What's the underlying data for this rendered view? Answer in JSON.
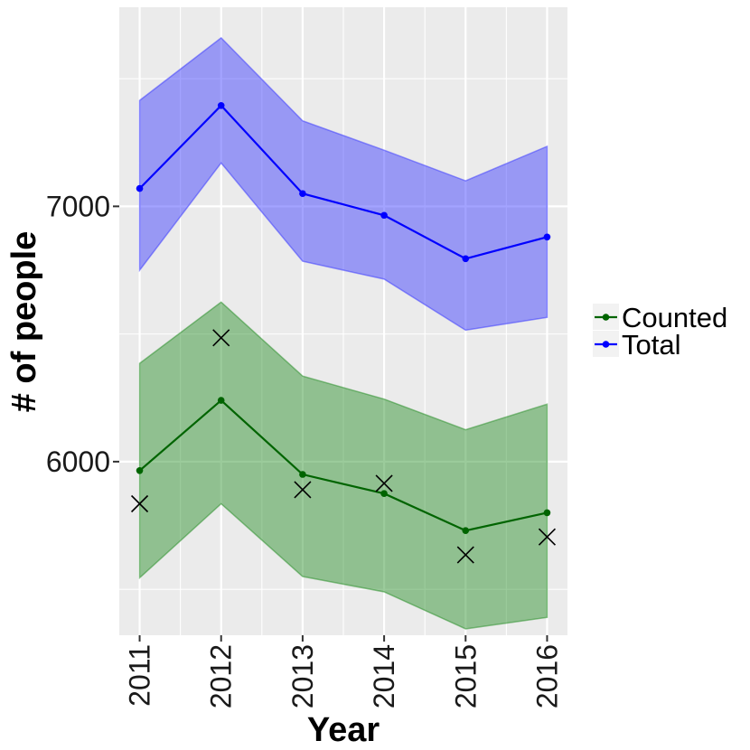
{
  "chart_data": {
    "type": "line",
    "title": "",
    "xlabel": "Year",
    "ylabel": "# of people",
    "x": [
      2011,
      2012,
      2013,
      2014,
      2015,
      2016
    ],
    "x_tick_labels": [
      "2011",
      "2012",
      "2013",
      "2014",
      "2015",
      "2016"
    ],
    "ylim": [
      5320,
      7780
    ],
    "y_ticks": [
      6000,
      7000
    ],
    "y_tick_labels": [
      "6000",
      "7000"
    ],
    "grid": true,
    "legend_position": "right",
    "series": [
      {
        "name": "Counted",
        "color": "#006400",
        "values": [
          5965,
          6240,
          5950,
          5875,
          5730,
          5800
        ],
        "lower": [
          5545,
          5835,
          5550,
          5490,
          5345,
          5390
        ],
        "upper": [
          6385,
          6625,
          6335,
          6245,
          6125,
          6225
        ],
        "ribbon_color": "#228B22"
      },
      {
        "name": "Total",
        "color": "#0000FF",
        "values": [
          7070,
          7395,
          7050,
          6965,
          6795,
          6880
        ],
        "lower": [
          6750,
          7170,
          6785,
          6715,
          6515,
          6565
        ],
        "upper": [
          7415,
          7660,
          7335,
          7220,
          7100,
          7235
        ],
        "ribbon_color": "#3333FF"
      }
    ],
    "observed": {
      "marker": "x",
      "values": [
        5835,
        6485,
        5890,
        5915,
        5635,
        5705
      ]
    }
  }
}
